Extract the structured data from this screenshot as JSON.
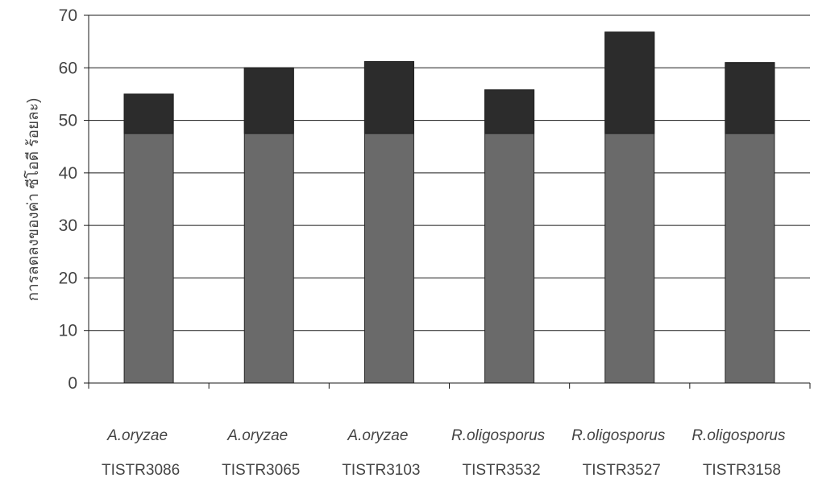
{
  "chart_data": {
    "type": "bar",
    "stacked": true,
    "title": "",
    "ylabel": "การลดลงของค่า ซีโอดี ร้อยละ)",
    "ylim": [
      0,
      70
    ],
    "yticks": [
      0,
      10,
      20,
      30,
      40,
      50,
      60,
      70
    ],
    "grid": true,
    "categories": [
      {
        "species": "A.oryzae",
        "strain": "TISTR3086"
      },
      {
        "species": "A.oryzae",
        "strain": "TISTR3065"
      },
      {
        "species": "A.oryzae",
        "strain": "TISTR3103"
      },
      {
        "species": "R.oligosporus",
        "strain": "TISTR3532"
      },
      {
        "species": "R.oligosporus",
        "strain": "TISTR3527"
      },
      {
        "species": "R.oligosporus",
        "strain": "TISTR3158"
      }
    ],
    "series": [
      {
        "values": [
          47.5,
          47.5,
          47.5,
          47.5,
          47.5,
          47.5
        ],
        "color": "#6a6a6a"
      },
      {
        "values": [
          7.5,
          12.5,
          13.7,
          8.3,
          19.3,
          13.5
        ],
        "color": "#2c2c2c"
      }
    ],
    "totals": [
      55.0,
      60.0,
      61.2,
      55.8,
      66.8,
      61.0
    ]
  }
}
